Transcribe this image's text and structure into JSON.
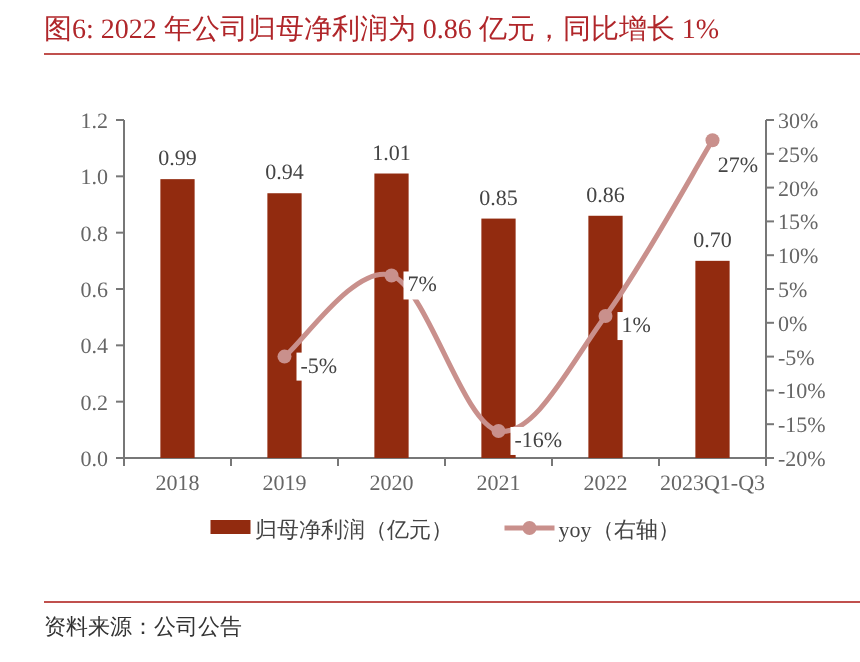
{
  "chart_data": {
    "type": "bar",
    "title": "图6:  2022 年公司归母净利润为 0.86 亿元，同比增长 1%",
    "categories": [
      "2018",
      "2019",
      "2020",
      "2021",
      "2022",
      "2023Q1-Q3"
    ],
    "series": [
      {
        "name": "归母净利润（亿元）",
        "color": "#922b0f",
        "values": [
          0.99,
          0.94,
          1.01,
          0.85,
          0.86,
          0.7
        ],
        "value_labels": [
          "0.99",
          "0.94",
          "1.01",
          "0.85",
          "0.86",
          "0.70"
        ]
      },
      {
        "name": "yoy（右轴）",
        "type": "line",
        "axis": "y2",
        "color": "#c9908c",
        "marker": "circle",
        "values": [
          null,
          -5,
          7,
          -16,
          1,
          27
        ],
        "value_labels": [
          null,
          "-5%",
          "7%",
          "-16%",
          "1%",
          "27%"
        ]
      }
    ],
    "ylim": [
      0,
      1.2
    ],
    "yticks": [
      {
        "value": 0,
        "label": "0.0"
      },
      {
        "value": 0.2,
        "label": "0.2"
      },
      {
        "value": 0.4,
        "label": "0.4"
      },
      {
        "value": 0.6,
        "label": "0.6"
      },
      {
        "value": 0.8,
        "label": "0.8"
      },
      {
        "value": 1.0,
        "label": "1.0"
      },
      {
        "value": 1.2,
        "label": "1.2"
      }
    ],
    "y2lim": [
      -20,
      30
    ],
    "y2ticks": [
      {
        "value": -20,
        "label": "-20%"
      },
      {
        "value": -15,
        "label": "-15%"
      },
      {
        "value": -10,
        "label": "-10%"
      },
      {
        "value": -5,
        "label": "-5%"
      },
      {
        "value": 0,
        "label": "0%"
      },
      {
        "value": 5,
        "label": "5%"
      },
      {
        "value": 10,
        "label": "10%"
      },
      {
        "value": 15,
        "label": "15%"
      },
      {
        "value": 20,
        "label": "20%"
      },
      {
        "value": 25,
        "label": "25%"
      },
      {
        "value": 30,
        "label": "30%"
      }
    ],
    "legend": "bottom",
    "grid": false,
    "annotations": [
      "资料来源：公司公告"
    ]
  }
}
